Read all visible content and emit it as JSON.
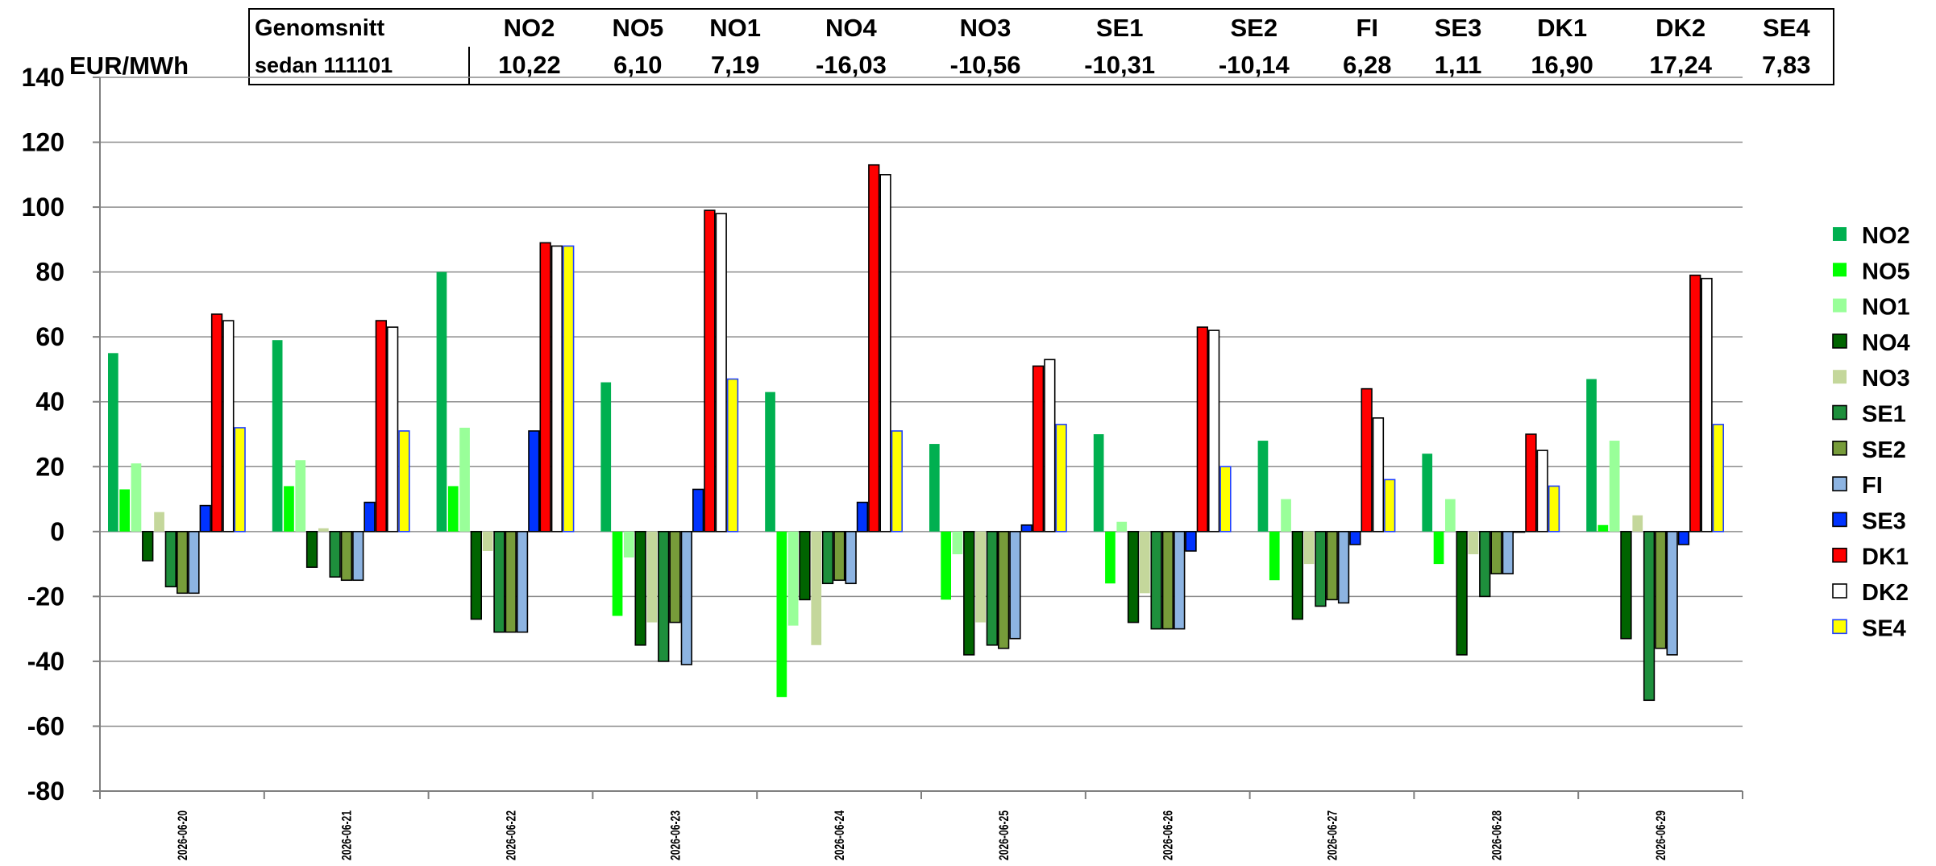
{
  "summary": {
    "row1_label": "Genomsnitt",
    "row2_label": "sedan 111101",
    "zones": [
      "NO2",
      "NO5",
      "NO1",
      "NO4",
      "NO3",
      "SE1",
      "SE2",
      "FI",
      "SE3",
      "DK1",
      "DK2",
      "SE4"
    ],
    "values": [
      "10,22",
      "6,10",
      "7,19",
      "-16,03",
      "-10,56",
      "-10,31",
      "-10,14",
      "6,28",
      "1,11",
      "16,90",
      "17,24",
      "7,83"
    ]
  },
  "chart_data": {
    "type": "bar",
    "ylabel": "EUR/MWh",
    "ylim": [
      -80,
      140
    ],
    "yticks": [
      -80,
      -60,
      -40,
      -20,
      0,
      20,
      40,
      60,
      80,
      100,
      120,
      140
    ],
    "grid": true,
    "legend_position": "right",
    "categories": [
      "2026-06-20",
      "2026-06-21",
      "2026-06-22",
      "2026-06-23",
      "2026-06-24",
      "2026-06-25",
      "2026-06-26",
      "2026-06-27",
      "2026-06-28",
      "2026-06-29"
    ],
    "series": [
      {
        "name": "NO2",
        "color": "#00b050",
        "values": [
          55,
          59,
          80,
          46,
          43,
          27,
          30,
          28,
          24,
          47
        ]
      },
      {
        "name": "NO5",
        "color": "#00ff00",
        "values": [
          13,
          14,
          14,
          -26,
          -51,
          -21,
          -16,
          -15,
          -10,
          2
        ]
      },
      {
        "name": "NO1",
        "color": "#99ff99",
        "values": [
          21,
          22,
          32,
          -8,
          -29,
          -7,
          3,
          10,
          10,
          28
        ]
      },
      {
        "name": "NO4",
        "color": "#006400",
        "values": [
          -9,
          -11,
          -27,
          -35,
          -21,
          -38,
          -28,
          -27,
          -38,
          -33
        ]
      },
      {
        "name": "NO3",
        "color": "#c4d79b",
        "values": [
          6,
          1,
          -6,
          -28,
          -35,
          -28,
          -19,
          -10,
          -7,
          5
        ]
      },
      {
        "name": "SE1",
        "color": "#1e8f3c",
        "values": [
          -17,
          -14,
          -31,
          -40,
          -16,
          -35,
          -30,
          -23,
          -20,
          -52
        ]
      },
      {
        "name": "SE2",
        "color": "#779c3a",
        "values": [
          -19,
          -15,
          -31,
          -28,
          -15,
          -36,
          -30,
          -21,
          -13,
          -36
        ]
      },
      {
        "name": "FI",
        "color": "#8db4e2",
        "values": [
          -19,
          -15,
          -31,
          -41,
          -16,
          -33,
          -30,
          -22,
          -13,
          -38
        ]
      },
      {
        "name": "SE3",
        "color": "#0033ff",
        "values": [
          8,
          9,
          31,
          13,
          9,
          2,
          -6,
          -4,
          0,
          -4
        ]
      },
      {
        "name": "DK1",
        "color": "#ff0000",
        "values": [
          67,
          65,
          89,
          99,
          113,
          51,
          63,
          44,
          30,
          79
        ]
      },
      {
        "name": "DK2",
        "color": "#ffffff",
        "values": [
          65,
          63,
          88,
          98,
          110,
          53,
          62,
          35,
          25,
          78
        ]
      },
      {
        "name": "SE4",
        "color": "#ffff00",
        "values": [
          32,
          31,
          88,
          47,
          31,
          33,
          20,
          16,
          14,
          33
        ]
      }
    ]
  }
}
